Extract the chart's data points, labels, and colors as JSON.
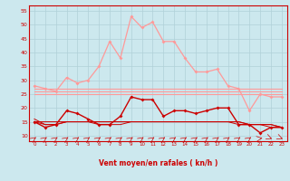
{
  "x": [
    0,
    1,
    2,
    3,
    4,
    5,
    6,
    7,
    8,
    9,
    10,
    11,
    12,
    13,
    14,
    15,
    16,
    17,
    18,
    19,
    20,
    21,
    22,
    23
  ],
  "series_pink_curve": [
    28,
    27,
    26,
    31,
    29,
    30,
    35,
    44,
    38,
    53,
    49,
    51,
    44,
    44,
    38,
    33,
    33,
    34,
    28,
    27,
    19,
    25,
    24,
    24
  ],
  "series_flat_pink1": [
    27,
    27,
    27,
    27,
    27,
    27,
    27,
    27,
    27,
    27,
    27,
    27,
    27,
    27,
    27,
    27,
    27,
    27,
    27,
    27,
    27,
    27,
    27,
    27
  ],
  "series_flat_pink2": [
    26,
    26,
    26,
    26,
    26,
    26,
    26,
    26,
    26,
    26,
    26,
    26,
    26,
    26,
    26,
    26,
    26,
    26,
    26,
    26,
    26,
    26,
    26,
    26
  ],
  "series_flat_pink3": [
    25,
    25,
    25,
    25,
    25,
    25,
    25,
    25,
    25,
    25,
    25,
    25,
    25,
    25,
    25,
    25,
    25,
    25,
    25,
    25,
    25,
    25,
    25,
    25
  ],
  "series_dark_red": [
    15,
    13,
    14,
    19,
    18,
    16,
    14,
    14,
    17,
    24,
    23,
    23,
    17,
    19,
    19,
    18,
    19,
    20,
    20,
    14,
    14,
    11,
    13,
    13
  ],
  "series_flat_dark1": [
    15,
    15,
    15,
    15,
    15,
    15,
    15,
    15,
    15,
    15,
    15,
    15,
    15,
    15,
    15,
    15,
    15,
    15,
    15,
    15,
    14,
    14,
    14,
    13
  ],
  "series_flat_dark2": [
    15,
    14,
    14,
    15,
    15,
    15,
    14,
    14,
    14,
    15,
    15,
    15,
    15,
    15,
    15,
    15,
    15,
    15,
    15,
    14,
    14,
    14,
    13,
    13
  ],
  "series_flat_dark3": [
    16,
    14,
    14,
    15,
    15,
    15,
    15,
    15,
    15,
    15,
    15,
    15,
    15,
    15,
    15,
    15,
    15,
    15,
    15,
    15,
    14,
    14,
    14,
    13
  ],
  "xlabel": "Vent moyen/en rafales ( kn/h )",
  "bg_color": "#cce8ee",
  "grid_color": "#b0d0d8",
  "color_pink": "#ff9999",
  "color_dark": "#cc0000",
  "ylim_min": 8,
  "ylim_max": 57,
  "yticks": [
    10,
    15,
    20,
    25,
    30,
    35,
    40,
    45,
    50,
    55
  ]
}
